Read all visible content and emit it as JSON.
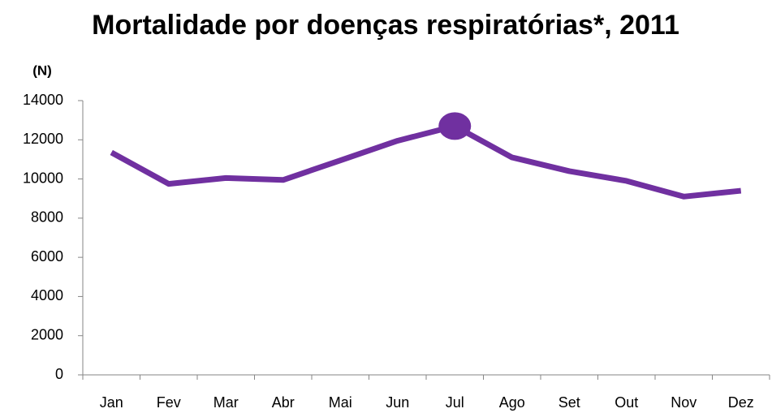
{
  "chart_data": {
    "type": "line",
    "title": "Mortalidade por doenças respiratórias*, 2011",
    "y_label": "(N)",
    "categories": [
      "Jan",
      "Fev",
      "Mar",
      "Abr",
      "Mai",
      "Jun",
      "Jul",
      "Ago",
      "Set",
      "Out",
      "Nov",
      "Dez"
    ],
    "series": [
      {
        "name": "Mortalidade",
        "color": "#7030a0",
        "values": [
          11350,
          9750,
          10050,
          9950,
          10950,
          11950,
          12700,
          11100,
          10400,
          9900,
          9100,
          9400
        ]
      }
    ],
    "highlight": 6,
    "ylim": [
      0,
      14000
    ],
    "yticks": [
      0,
      2000,
      4000,
      6000,
      8000,
      10000,
      12000,
      14000
    ],
    "grid": false,
    "legend": false
  }
}
